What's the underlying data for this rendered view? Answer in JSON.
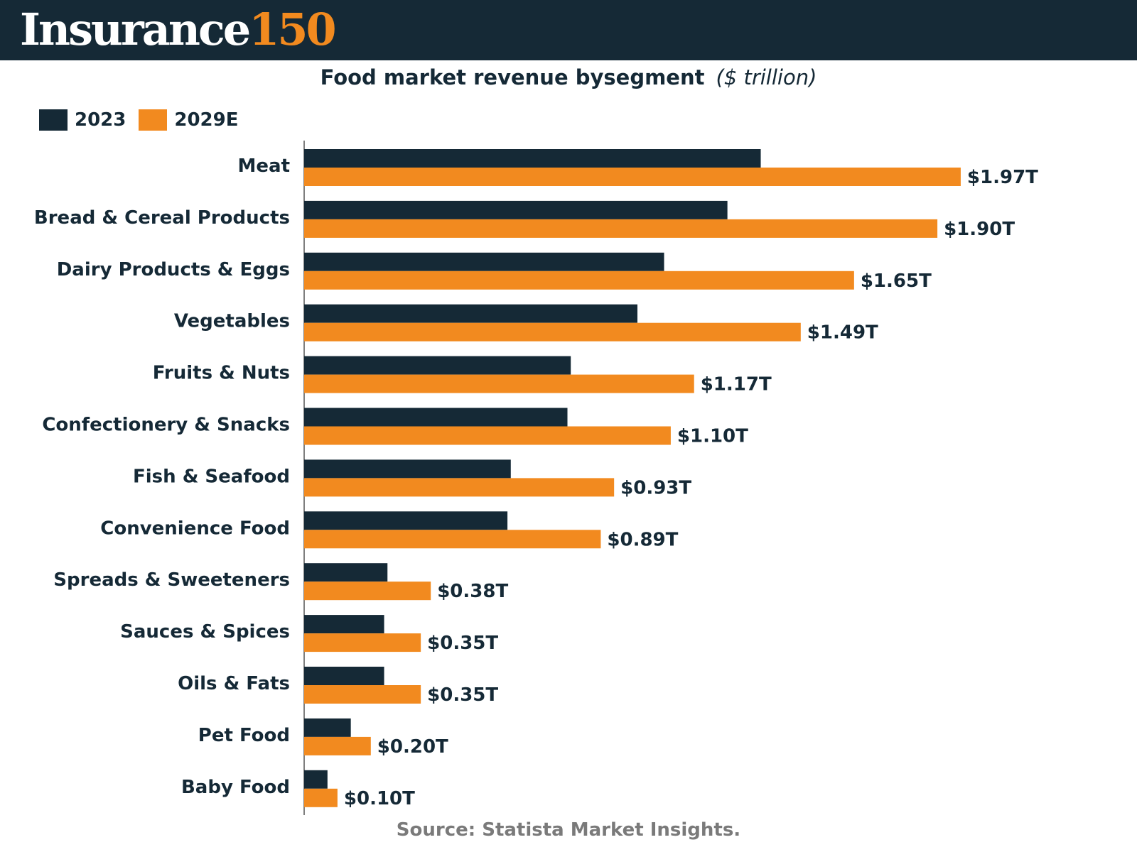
{
  "header": {
    "brand_word": "Insurance",
    "brand_number": "150"
  },
  "colors": {
    "header_bg": "#152936",
    "series_2023": "#152936",
    "series_2029E": "#f28a1f",
    "text": "#152936",
    "source_text": "#7a7a7a"
  },
  "chart_data": {
    "type": "bar",
    "orientation": "horizontal",
    "title": "Food market revenue bysegment",
    "unit": "($ trillion)",
    "legend_placement": "top-left",
    "grid": false,
    "xlim": [
      0,
      2.1
    ],
    "categories": [
      "Meat",
      "Bread & Cereal Products",
      "Dairy Products & Eggs",
      "Vegetables",
      "Fruits & Nuts",
      "Confectionery & Snacks",
      "Fish & Seafood",
      "Convenience Food",
      "Spreads & Sweeteners",
      "Sauces & Spices",
      "Oils & Fats",
      "Pet Food",
      "Baby Food"
    ],
    "series": [
      {
        "name": "2023",
        "values": [
          1.37,
          1.27,
          1.08,
          1.0,
          0.8,
          0.79,
          0.62,
          0.61,
          0.25,
          0.24,
          0.24,
          0.14,
          0.07
        ]
      },
      {
        "name": "2029E",
        "values": [
          1.97,
          1.9,
          1.65,
          1.49,
          1.17,
          1.1,
          0.93,
          0.89,
          0.38,
          0.35,
          0.35,
          0.2,
          0.1
        ],
        "labels": [
          "$1.97T",
          "$1.90T",
          "$1.65T",
          "$1.49T",
          "$1.17T",
          "$1.10T",
          "$0.93T",
          "$0.89T",
          "$0.38T",
          "$0.35T",
          "$0.35T",
          "$0.20T",
          "$0.10T"
        ]
      }
    ]
  },
  "source": "Source: Statista  Market Insights."
}
